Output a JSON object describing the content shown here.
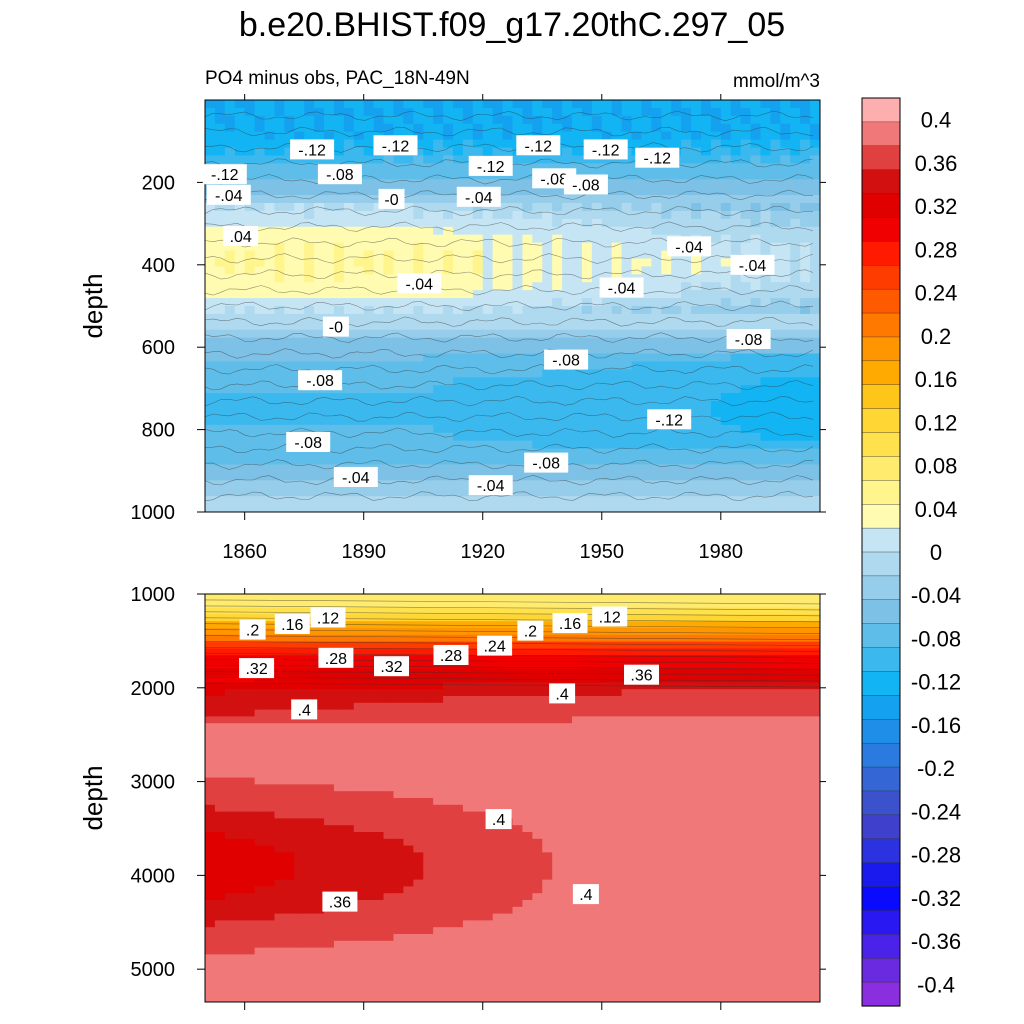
{
  "title": "b.e20.BHIST.f09_g17.20thC.297_05",
  "chart_data": [
    {
      "type": "heatmap",
      "panel": "upper",
      "subtitle_left": "PO4 minus obs, PAC_18N-49N",
      "subtitle_right": "mmol/m^3",
      "xlabel": "",
      "ylabel": "depth",
      "xlim": [
        1850,
        2005
      ],
      "ylim": [
        1000,
        0
      ],
      "x_ticks": [
        1860,
        1890,
        1920,
        1950,
        1980
      ],
      "x_tick_labels": [
        "1860",
        "1890",
        "1920",
        "1950",
        "1980"
      ],
      "y_ticks": [
        200,
        400,
        600,
        800,
        1000
      ],
      "y_tick_labels": [
        "200",
        "400",
        "600",
        "800",
        "1000"
      ],
      "depth_profile": {
        "depth": [
          0,
          100,
          200,
          270,
          340,
          400,
          470,
          530,
          600,
          680,
          750,
          820,
          880,
          940,
          1000
        ],
        "value": [
          -0.14,
          -0.13,
          -0.07,
          0.005,
          0.035,
          0.045,
          0.03,
          -0.01,
          -0.06,
          -0.09,
          -0.095,
          -0.09,
          -0.07,
          -0.035,
          -0.005
        ]
      },
      "contour_labels": [
        {
          "year": 1877,
          "depth": 120,
          "text": "-.12"
        },
        {
          "year": 1855,
          "depth": 180,
          "text": "-.12"
        },
        {
          "year": 1898,
          "depth": 110,
          "text": "-.12"
        },
        {
          "year": 1934,
          "depth": 110,
          "text": "-.12"
        },
        {
          "year": 1951,
          "depth": 120,
          "text": "-.12"
        },
        {
          "year": 1964,
          "depth": 140,
          "text": "-.12"
        },
        {
          "year": 1922,
          "depth": 160,
          "text": "-.12"
        },
        {
          "year": 1884,
          "depth": 180,
          "text": "-.08"
        },
        {
          "year": 1938,
          "depth": 190,
          "text": "-.08"
        },
        {
          "year": 1946,
          "depth": 205,
          "text": "-.08"
        },
        {
          "year": 1856,
          "depth": 230,
          "text": "-.04"
        },
        {
          "year": 1919,
          "depth": 235,
          "text": "-.04"
        },
        {
          "year": 1897,
          "depth": 240,
          "text": "-0"
        },
        {
          "year": 1859,
          "depth": 330,
          "text": ".04"
        },
        {
          "year": 1972,
          "depth": 355,
          "text": "-.04"
        },
        {
          "year": 1988,
          "depth": 400,
          "text": "-.04"
        },
        {
          "year": 1883,
          "depth": 550,
          "text": "-0"
        },
        {
          "year": 1955,
          "depth": 455,
          "text": "-.04"
        },
        {
          "year": 1904,
          "depth": 445,
          "text": "-.04"
        },
        {
          "year": 1987,
          "depth": 580,
          "text": "-.08"
        },
        {
          "year": 1941,
          "depth": 630,
          "text": "-.08"
        },
        {
          "year": 1879,
          "depth": 680,
          "text": "-.08"
        },
        {
          "year": 1967,
          "depth": 775,
          "text": "-.12"
        },
        {
          "year": 1876,
          "depth": 830,
          "text": "-.08"
        },
        {
          "year": 1936,
          "depth": 880,
          "text": "-.08"
        },
        {
          "year": 1888,
          "depth": 915,
          "text": "-.04"
        },
        {
          "year": 1922,
          "depth": 935,
          "text": "-.04"
        }
      ]
    },
    {
      "type": "heatmap",
      "panel": "lower",
      "xlabel": "",
      "ylabel": "depth",
      "xlim": [
        1850,
        2005
      ],
      "ylim": [
        5350,
        1000
      ],
      "y_ticks": [
        1000,
        2000,
        3000,
        4000,
        5000
      ],
      "y_tick_labels": [
        "1000",
        "2000",
        "3000",
        "4000",
        "5000"
      ],
      "depth_profile": {
        "depth": [
          1000,
          1150,
          1300,
          1450,
          1600,
          1750,
          1900,
          2100,
          2500
        ],
        "value": [
          0.06,
          0.1,
          0.15,
          0.22,
          0.28,
          0.32,
          0.345,
          0.38,
          0.41
        ]
      },
      "contour_labels": [
        {
          "year": 1862,
          "depth": 1380,
          "text": ".2"
        },
        {
          "year": 1872,
          "depth": 1320,
          "text": ".16"
        },
        {
          "year": 1881,
          "depth": 1250,
          "text": ".12"
        },
        {
          "year": 1863,
          "depth": 1790,
          "text": ".32"
        },
        {
          "year": 1883,
          "depth": 1680,
          "text": ".28"
        },
        {
          "year": 1897,
          "depth": 1770,
          "text": ".32"
        },
        {
          "year": 1912,
          "depth": 1650,
          "text": ".28"
        },
        {
          "year": 1923,
          "depth": 1550,
          "text": ".24"
        },
        {
          "year": 1932,
          "depth": 1390,
          "text": ".2"
        },
        {
          "year": 1942,
          "depth": 1310,
          "text": ".16"
        },
        {
          "year": 1952,
          "depth": 1240,
          "text": ".12"
        },
        {
          "year": 1960,
          "depth": 1860,
          "text": ".36"
        },
        {
          "year": 1940,
          "depth": 2060,
          "text": ".4"
        },
        {
          "year": 1875,
          "depth": 2230,
          "text": ".4"
        },
        {
          "year": 1924,
          "depth": 3400,
          "text": ".4"
        },
        {
          "year": 1884,
          "depth": 4280,
          "text": ".36"
        },
        {
          "year": 1946,
          "depth": 4200,
          "text": ".4"
        }
      ]
    }
  ],
  "colorbar": {
    "labels": [
      "0.4",
      "0.36",
      "0.32",
      "0.28",
      "0.24",
      "0.2",
      "0.16",
      "0.12",
      "0.08",
      "0.04",
      "0",
      "-0.04",
      "-0.08",
      "-0.12",
      "-0.16",
      "-0.2",
      "-0.24",
      "-0.28",
      "-0.32",
      "-0.36",
      "-0.4"
    ],
    "colors": [
      "#fdaeae",
      "#f07878",
      "#e04040",
      "#d21010",
      "#e00000",
      "#f00000",
      "#ff1a00",
      "#ff3c00",
      "#ff5a00",
      "#ff7800",
      "#ff9600",
      "#ffaa00",
      "#ffc61a",
      "#ffd633",
      "#ffe14d",
      "#ffeb6e",
      "#fff58c",
      "#fffbb0",
      "#c6e5f4",
      "#aed9ef",
      "#96cdea",
      "#7ec1e6",
      "#5ebee9",
      "#3bb9ef",
      "#12b4f3",
      "#14a2f0",
      "#1e8ee8",
      "#2a7ae0",
      "#3466d6",
      "#3c52cc",
      "#3f40cc",
      "#2c32e0",
      "#1a1aee",
      "#0a0aff",
      "#2a18f2",
      "#4a22e8",
      "#6a2ae0",
      "#8a2ee0"
    ]
  }
}
